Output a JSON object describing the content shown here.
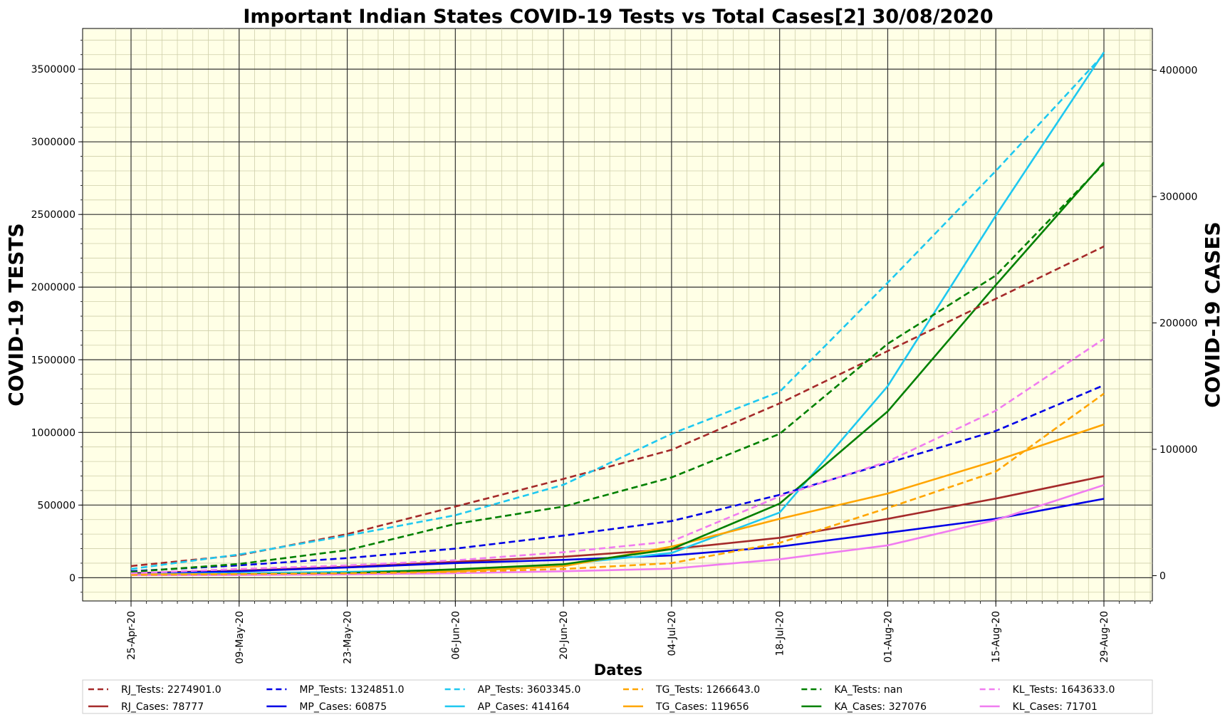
{
  "chart_data": {
    "type": "line",
    "title": "Important Indian States COVID-19 Tests vs Total Cases[2] 30/08/2020",
    "xlabel": "Dates",
    "ylabel_left": "COVID-19 TESTS",
    "ylabel_right": "COVID-19 CASES",
    "x_ticks": [
      "25-Apr-20",
      "09-May-20",
      "23-May-20",
      "06-Jun-20",
      "20-Jun-20",
      "04-Jul-20",
      "18-Jul-20",
      "01-Aug-20",
      "15-Aug-20",
      "29-Aug-20"
    ],
    "x_start": "25-Apr-20",
    "x_end": "29-Aug-20",
    "y_left_ticks": [
      0,
      500000,
      1000000,
      1500000,
      2000000,
      2500000,
      3000000,
      3500000
    ],
    "y_left_lim": [
      -160000,
      3780000
    ],
    "y_right_ticks": [
      0,
      100000,
      200000,
      300000,
      400000
    ],
    "y_right_lim": [
      -20000,
      433000
    ],
    "grid": true,
    "legend_placement": "bottom",
    "background": "#ffffe6",
    "x_sample_days": [
      0,
      14,
      28,
      42,
      56,
      70,
      84,
      98,
      112,
      126
    ],
    "series_tests": [
      {
        "name": "RJ_Tests: 2274901.0",
        "color": "#a52a2a",
        "values": [
          80000,
          155000,
          300000,
          490000,
          680000,
          880000,
          1200000,
          1560000,
          1920000,
          2280000
        ]
      },
      {
        "name": "MP_Tests: 1324851.0",
        "color": "#0000e6",
        "values": [
          45000,
          85000,
          135000,
          200000,
          290000,
          390000,
          570000,
          790000,
          1010000,
          1325000
        ]
      },
      {
        "name": "AP_Tests: 3603345.0",
        "color": "#1ec8f0",
        "values": [
          60000,
          160000,
          290000,
          430000,
          640000,
          990000,
          1280000,
          2030000,
          2800000,
          3603000
        ]
      },
      {
        "name": "TG_Tests: 1266643.0",
        "color": "#ffa500",
        "values": [
          20000,
          25000,
          30000,
          40000,
          60000,
          100000,
          240000,
          480000,
          730000,
          1267000
        ]
      },
      {
        "name": "KA_Tests: nan",
        "color": "#008000",
        "values": [
          40000,
          95000,
          190000,
          370000,
          490000,
          690000,
          990000,
          1610000,
          2080000,
          2850000
        ]
      },
      {
        "name": "KL_Tests: 1643633.0",
        "color": "#f07cf0",
        "values": [
          30000,
          60000,
          85000,
          120000,
          175000,
          250000,
          560000,
          800000,
          1150000,
          1644000
        ]
      }
    ],
    "series_cases": [
      {
        "name": "RJ_Cases: 78777",
        "color": "#a52a2a",
        "values": [
          2000,
          4000,
          7000,
          11000,
          15000,
          21000,
          30000,
          45000,
          61000,
          78777
        ]
      },
      {
        "name": "MP_Cases: 60875",
        "color": "#0000e6",
        "values": [
          1500,
          3500,
          6500,
          10000,
          12500,
          16000,
          23000,
          34000,
          45000,
          60875
        ]
      },
      {
        "name": "AP_Cases: 414164",
        "color": "#1ec8f0",
        "values": [
          1200,
          2000,
          3000,
          4500,
          9000,
          18000,
          50000,
          150000,
          285000,
          414164
        ]
      },
      {
        "name": "TG_Cases: 119656",
        "color": "#ffa500",
        "values": [
          1000,
          1200,
          1800,
          3500,
          7500,
          23000,
          45000,
          65000,
          91000,
          119656
        ]
      },
      {
        "name": "KA_Cases: 327076",
        "color": "#008000",
        "values": [
          500,
          800,
          2000,
          5000,
          9000,
          21000,
          57000,
          130000,
          230000,
          327076
        ]
      },
      {
        "name": "KL_Cases: 71701",
        "color": "#f07cf0",
        "values": [
          400,
          500,
          1000,
          2000,
          3500,
          5500,
          13000,
          24000,
          44000,
          71701
        ]
      }
    ]
  }
}
